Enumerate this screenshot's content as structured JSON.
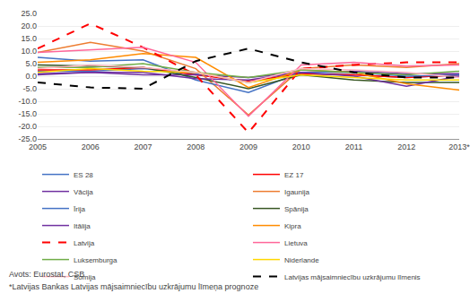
{
  "chart_data": {
    "type": "line",
    "categories": [
      "2005",
      "2006",
      "2007",
      "2008",
      "2009",
      "2010",
      "2011",
      "2012",
      "2013*"
    ],
    "series": [
      {
        "name": "ES 28",
        "color": "#4472C4",
        "line_style": "solid",
        "values": [
          2.0,
          2.0,
          3.0,
          1.0,
          -2.5,
          1.0,
          0.5,
          -0.5,
          0.5
        ]
      },
      {
        "name": "EZ 17",
        "color": "#FF0000",
        "line_style": "solid",
        "values": [
          2.5,
          2.5,
          3.5,
          0.5,
          -2.0,
          1.0,
          0.5,
          -0.5,
          0.5
        ]
      },
      {
        "name": "Vācija",
        "color": "#7030A0",
        "line_style": "solid",
        "values": [
          0.5,
          1.5,
          0.5,
          0.5,
          -0.5,
          1.5,
          2.0,
          1.0,
          1.0
        ]
      },
      {
        "name": "Igaunija",
        "color": "#ED7D31",
        "line_style": "solid",
        "values": [
          9.5,
          13.5,
          10.0,
          3.0,
          -15.5,
          3.0,
          4.5,
          3.5,
          5.0
        ]
      },
      {
        "name": "Īrija",
        "color": "#4472C4",
        "line_style": "solid",
        "values": [
          7.5,
          6.0,
          6.5,
          -1.5,
          -6.5,
          1.5,
          1.5,
          0.0,
          0.5
        ]
      },
      {
        "name": "Spānija",
        "color": "#375623",
        "line_style": "solid",
        "values": [
          4.5,
          4.0,
          3.5,
          -0.5,
          -5.0,
          0.5,
          -1.5,
          -2.5,
          -2.5
        ]
      },
      {
        "name": "Itālija",
        "color": "#7030A0",
        "line_style": "solid",
        "values": [
          1.0,
          1.5,
          1.5,
          -1.0,
          -1.5,
          1.5,
          0.0,
          -4.0,
          0.0
        ]
      },
      {
        "name": "Kipra",
        "color": "#FF8C00",
        "line_style": "solid",
        "values": [
          5.5,
          6.5,
          9.0,
          7.5,
          -4.5,
          2.5,
          1.5,
          -3.0,
          -5.5
        ]
      },
      {
        "name": "Latvija",
        "color": "#FF0000",
        "line_style": "dashed",
        "values": [
          11.0,
          21.0,
          11.5,
          0.5,
          -22.5,
          3.0,
          4.5,
          5.5,
          5.5
        ]
      },
      {
        "name": "Lietuva",
        "color": "#FF6699",
        "line_style": "solid",
        "values": [
          9.5,
          10.5,
          11.5,
          5.5,
          -16.0,
          4.5,
          5.5,
          4.0,
          4.5
        ]
      },
      {
        "name": "Luksemburga",
        "color": "#70AD47",
        "line_style": "solid",
        "values": [
          3.5,
          3.5,
          5.0,
          1.5,
          -0.5,
          2.5,
          1.5,
          0.5,
          2.0
        ]
      },
      {
        "name": "Niderlande",
        "color": "#FFD700",
        "line_style": "solid",
        "values": [
          1.5,
          3.0,
          2.0,
          1.5,
          -2.5,
          0.5,
          -0.5,
          -1.5,
          -1.5
        ]
      },
      {
        "name": "Somija",
        "color": "#FFB6C1",
        "line_style": "solid",
        "values": [
          3.0,
          4.5,
          3.5,
          1.5,
          -2.5,
          3.0,
          2.5,
          1.5,
          -0.5
        ]
      },
      {
        "name": "Latvijas mājsaimniecību uzkrājumu līmenis",
        "color": "#000000",
        "line_style": "dashed",
        "values": [
          -2.5,
          -4.5,
          -5.0,
          6.0,
          11.0,
          5.5,
          1.5,
          -0.5,
          -0.5
        ]
      }
    ],
    "ylim": [
      -25.0,
      25.0
    ],
    "yticks": [
      {
        "value": -25,
        "label": "-25.0"
      },
      {
        "value": -20,
        "label": "-20.0"
      },
      {
        "value": -15,
        "label": "-15.0"
      },
      {
        "value": -10,
        "label": "-10.0"
      },
      {
        "value": -5,
        "label": "-5.0"
      },
      {
        "value": 0,
        "label": "0.0"
      },
      {
        "value": 5,
        "label": "5.0"
      },
      {
        "value": 10,
        "label": "10.0"
      },
      {
        "value": 15,
        "label": "15.0"
      },
      {
        "value": 20,
        "label": "20.0"
      },
      {
        "value": 25,
        "label": "25.0"
      }
    ],
    "grid": true,
    "legend": "bottom",
    "annotations": [
      "Avots: Eurostat, CSB",
      "*Latvijas Bankas Latvijas mājsaimniecību uzkrājumu līmeņa prognoze"
    ]
  }
}
